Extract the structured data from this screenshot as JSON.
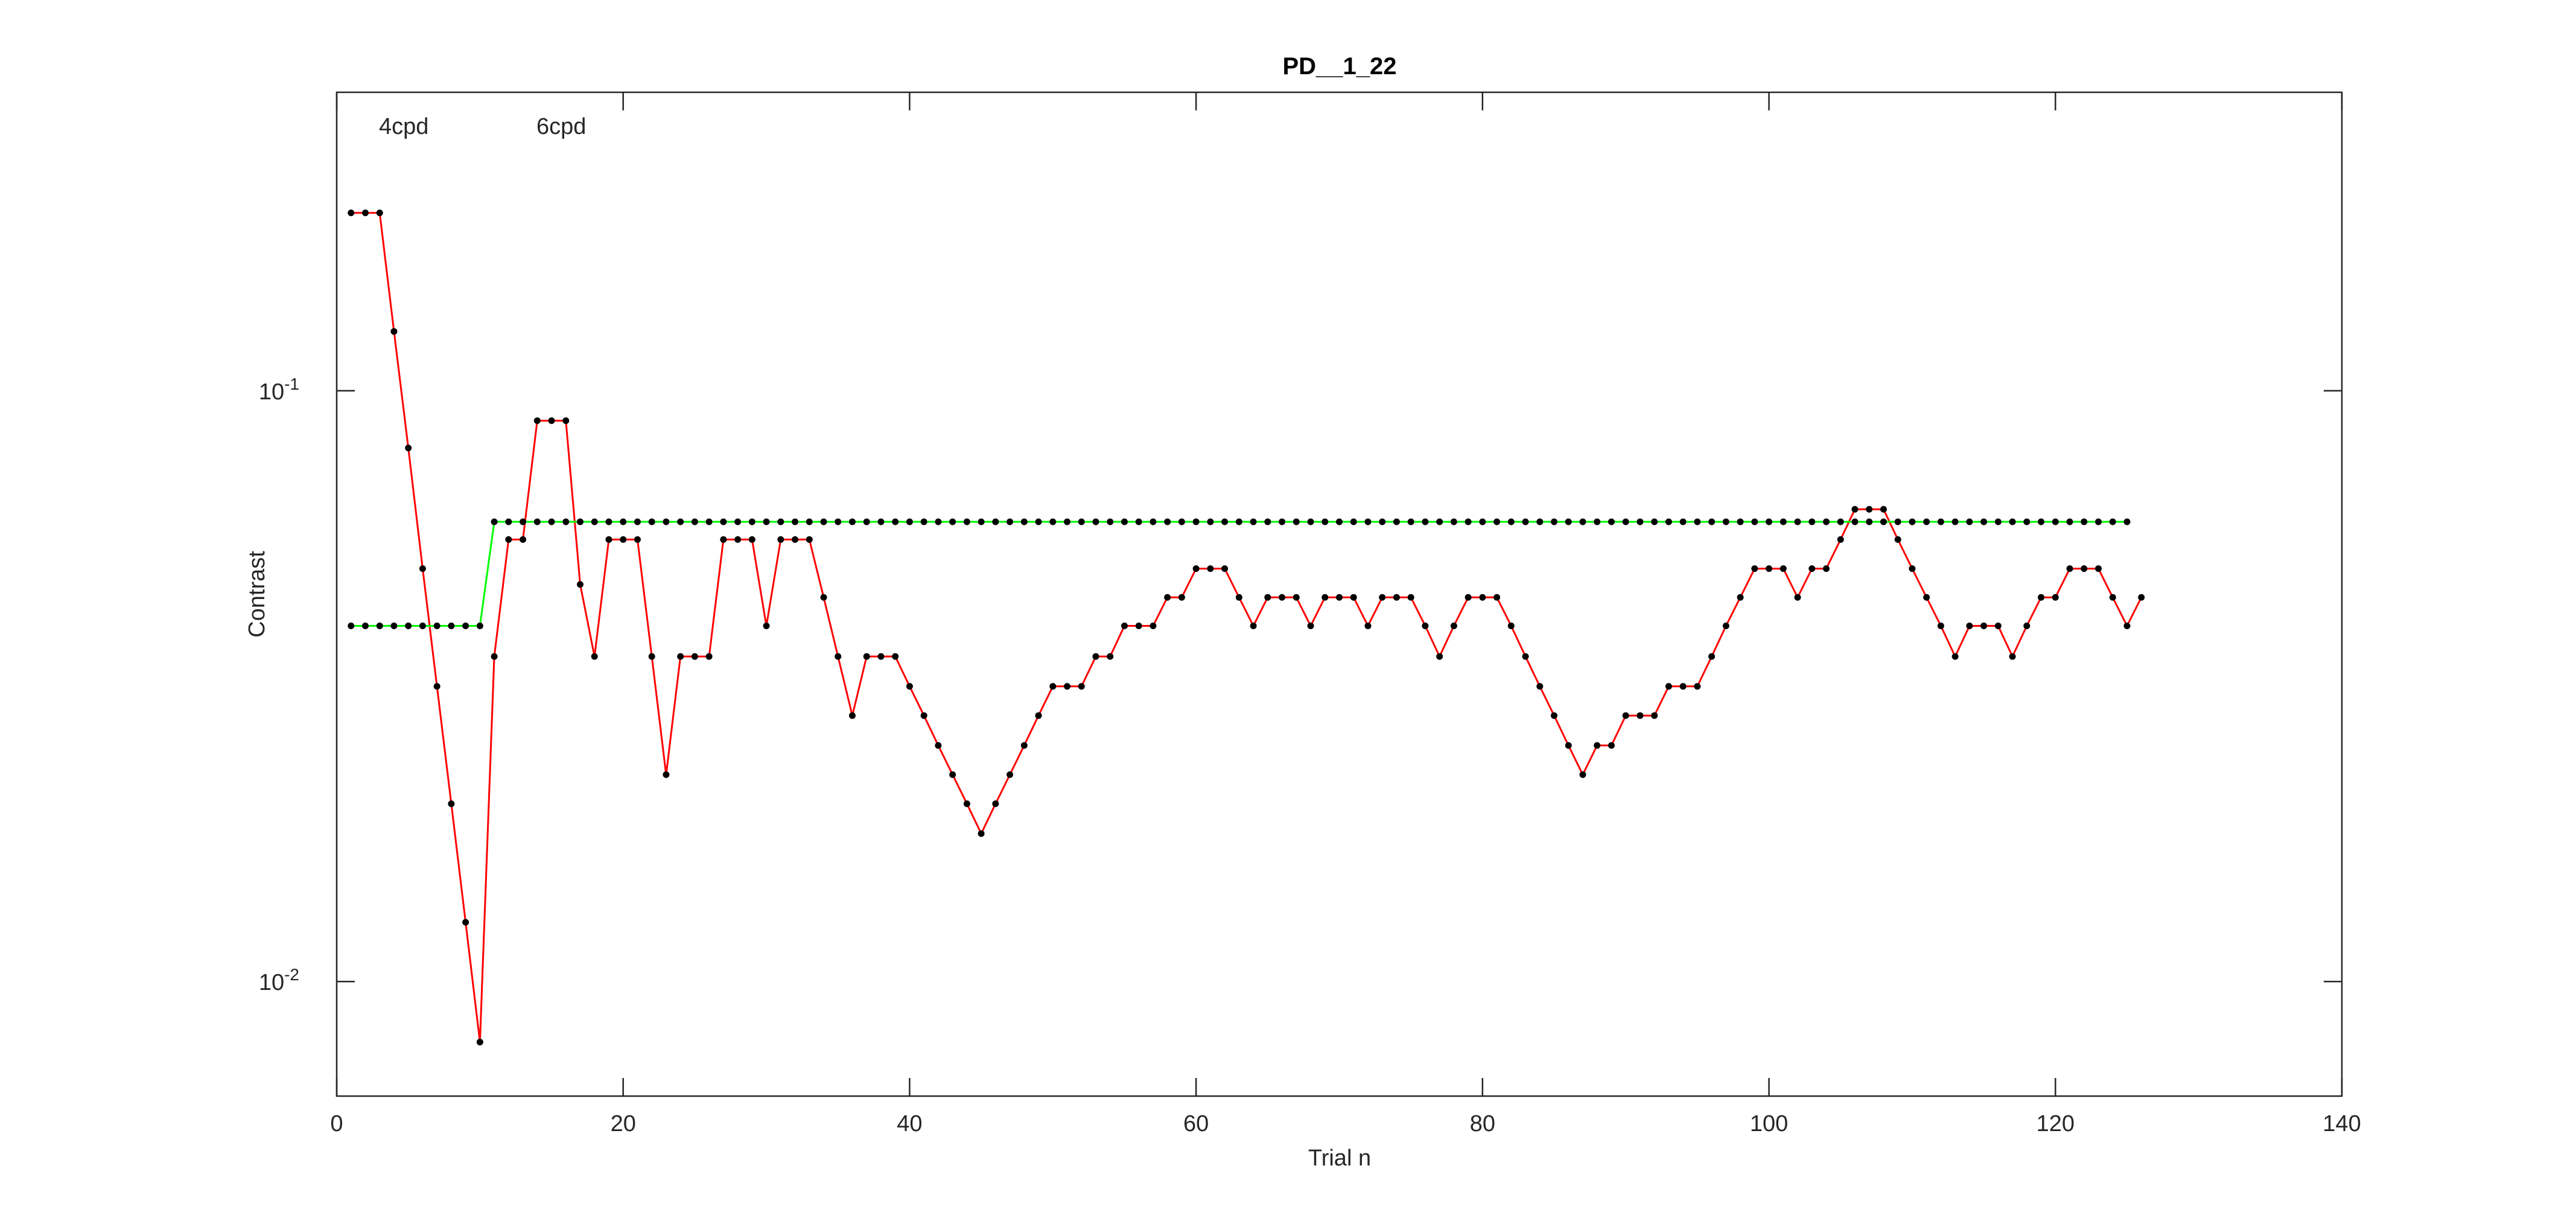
{
  "chart_data": {
    "type": "line",
    "title": "PD__1_22",
    "xlabel": "Trial n",
    "ylabel": "Contrast",
    "annotations": [
      "4cpd",
      "6cpd"
    ],
    "xlim": [
      0,
      140
    ],
    "xticks": [
      0,
      20,
      40,
      60,
      80,
      100,
      120,
      140
    ],
    "ylim": [
      0.0064,
      0.32
    ],
    "log_y": true,
    "yticks": [
      {
        "value": 0.01,
        "label": "10",
        "exponent": "-2"
      },
      {
        "value": 0.1,
        "label": "10",
        "exponent": "-1"
      }
    ],
    "grid": false,
    "marker_color": "#000000",
    "series": [
      {
        "color": "#ff0000",
        "x": [
          1,
          2,
          3,
          4,
          5,
          6,
          7,
          8,
          9,
          10,
          11,
          12,
          13,
          14,
          15,
          16,
          17,
          18,
          19,
          20,
          21,
          22,
          23,
          24,
          25,
          26,
          27,
          28,
          29,
          30,
          31,
          32,
          33,
          34,
          35,
          36,
          37,
          38,
          39,
          40,
          41,
          42,
          43,
          44,
          45,
          46,
          47,
          48,
          49,
          50,
          51,
          52,
          53,
          54,
          55,
          56,
          57,
          58,
          59,
          60,
          61,
          62,
          63,
          64,
          65,
          66,
          67,
          68,
          69,
          70,
          71,
          72,
          73,
          74,
          75,
          76,
          77,
          78,
          79,
          80,
          81,
          82,
          83,
          84,
          85,
          86,
          87,
          88,
          89,
          90,
          91,
          92,
          93,
          94,
          95,
          96,
          97,
          98,
          99,
          100,
          101,
          102,
          103,
          104,
          105,
          106,
          107,
          108,
          109,
          110,
          111,
          112,
          113,
          114,
          115,
          116,
          117,
          118,
          119,
          120,
          121,
          122,
          123,
          124,
          125,
          126
        ],
        "values": [
          0.2,
          0.2,
          0.2,
          0.126,
          0.08,
          0.05,
          0.0316,
          0.02,
          0.0126,
          0.0079,
          0.0355,
          0.056,
          0.056,
          0.089,
          0.089,
          0.089,
          0.047,
          0.0355,
          0.056,
          0.056,
          0.056,
          0.0355,
          0.0224,
          0.0355,
          0.0355,
          0.0355,
          0.056,
          0.056,
          0.056,
          0.04,
          0.056,
          0.056,
          0.056,
          0.0447,
          0.0355,
          0.0282,
          0.0355,
          0.0355,
          0.0355,
          0.0316,
          0.0282,
          0.0251,
          0.0224,
          0.02,
          0.0178,
          0.02,
          0.0224,
          0.0251,
          0.0282,
          0.0316,
          0.0316,
          0.0316,
          0.0355,
          0.0355,
          0.04,
          0.04,
          0.04,
          0.0447,
          0.0447,
          0.05,
          0.05,
          0.05,
          0.0447,
          0.04,
          0.0447,
          0.0447,
          0.0447,
          0.04,
          0.0447,
          0.0447,
          0.0447,
          0.04,
          0.0447,
          0.0447,
          0.0447,
          0.04,
          0.0355,
          0.04,
          0.0447,
          0.0447,
          0.0447,
          0.04,
          0.0355,
          0.0316,
          0.0282,
          0.0251,
          0.0224,
          0.0251,
          0.0251,
          0.0282,
          0.0282,
          0.0282,
          0.0316,
          0.0316,
          0.0316,
          0.0355,
          0.04,
          0.0447,
          0.05,
          0.05,
          0.05,
          0.0447,
          0.05,
          0.05,
          0.056,
          0.063,
          0.063,
          0.063,
          0.056,
          0.05,
          0.0447,
          0.04,
          0.0355,
          0.04,
          0.04,
          0.04,
          0.0355,
          0.04,
          0.0447,
          0.0447,
          0.05,
          0.05,
          0.05,
          0.0447,
          0.04,
          0.0447
        ]
      },
      {
        "color": "#00ff00",
        "x": [
          1,
          2,
          3,
          4,
          5,
          6,
          7,
          8,
          9,
          10,
          11,
          12,
          13,
          14,
          15,
          16,
          17,
          18,
          19,
          20,
          21,
          22,
          23,
          24,
          25,
          26,
          27,
          28,
          29,
          30,
          31,
          32,
          33,
          34,
          35,
          36,
          37,
          38,
          39,
          40,
          41,
          42,
          43,
          44,
          45,
          46,
          47,
          48,
          49,
          50,
          51,
          52,
          53,
          54,
          55,
          56,
          57,
          58,
          59,
          60,
          61,
          62,
          63,
          64,
          65,
          66,
          67,
          68,
          69,
          70,
          71,
          72,
          73,
          74,
          75,
          76,
          77,
          78,
          79,
          80,
          81,
          82,
          83,
          84,
          85,
          86,
          87,
          88,
          89,
          90,
          91,
          92,
          93,
          94,
          95,
          96,
          97,
          98,
          99,
          100,
          101,
          102,
          103,
          104,
          105,
          106,
          107,
          108,
          109,
          110,
          111,
          112,
          113,
          114,
          115,
          116,
          117,
          118,
          119,
          120,
          121,
          122,
          123,
          124,
          125
        ],
        "values": [
          0.04,
          0.04,
          0.04,
          0.04,
          0.04,
          0.04,
          0.04,
          0.04,
          0.04,
          0.04,
          0.06,
          0.06,
          0.06,
          0.06,
          0.06,
          0.06,
          0.06,
          0.06,
          0.06,
          0.06,
          0.06,
          0.06,
          0.06,
          0.06,
          0.06,
          0.06,
          0.06,
          0.06,
          0.06,
          0.06,
          0.06,
          0.06,
          0.06,
          0.06,
          0.06,
          0.06,
          0.06,
          0.06,
          0.06,
          0.06,
          0.06,
          0.06,
          0.06,
          0.06,
          0.06,
          0.06,
          0.06,
          0.06,
          0.06,
          0.06,
          0.06,
          0.06,
          0.06,
          0.06,
          0.06,
          0.06,
          0.06,
          0.06,
          0.06,
          0.06,
          0.06,
          0.06,
          0.06,
          0.06,
          0.06,
          0.06,
          0.06,
          0.06,
          0.06,
          0.06,
          0.06,
          0.06,
          0.06,
          0.06,
          0.06,
          0.06,
          0.06,
          0.06,
          0.06,
          0.06,
          0.06,
          0.06,
          0.06,
          0.06,
          0.06,
          0.06,
          0.06,
          0.06,
          0.06,
          0.06,
          0.06,
          0.06,
          0.06,
          0.06,
          0.06,
          0.06,
          0.06,
          0.06,
          0.06,
          0.06,
          0.06,
          0.06,
          0.06,
          0.06,
          0.06,
          0.06,
          0.06,
          0.06,
          0.06,
          0.06,
          0.06,
          0.06,
          0.06,
          0.06,
          0.06,
          0.06,
          0.06,
          0.06,
          0.06,
          0.06,
          0.06,
          0.06,
          0.06,
          0.06,
          0.06
        ]
      }
    ]
  }
}
